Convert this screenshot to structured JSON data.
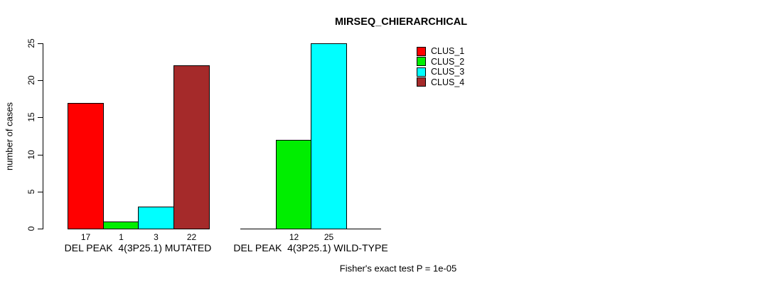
{
  "chart_data": {
    "type": "bar",
    "title": "MIRSEQ_CHIERARCHICAL",
    "ylabel": "number of cases",
    "xlabel": "",
    "ylim": [
      0,
      25
    ],
    "yticks": [
      0,
      5,
      10,
      15,
      20,
      25
    ],
    "grid": false,
    "series_names": [
      "CLUS_1",
      "CLUS_2",
      "CLUS_3",
      "CLUS_4"
    ],
    "colors": [
      "#FF0000",
      "#00EE00",
      "#00FFFF",
      "#A52A2A"
    ],
    "groups": [
      {
        "label": "DEL PEAK  4(3P25.1) MUTATED",
        "values": [
          17,
          1,
          3,
          22
        ],
        "value_labels": [
          "17",
          "1",
          "3",
          "22"
        ]
      },
      {
        "label": "DEL PEAK  4(3P25.1) WILD-TYPE",
        "values": [
          0,
          12,
          25,
          0
        ],
        "value_labels": [
          "",
          "12",
          "25",
          ""
        ]
      }
    ],
    "legend": {
      "position": "right",
      "border": false,
      "entries": [
        "CLUS_1",
        "CLUS_2",
        "CLUS_3",
        "CLUS_4"
      ]
    },
    "annotation": "Fisher's exact test P = 1e-05"
  }
}
